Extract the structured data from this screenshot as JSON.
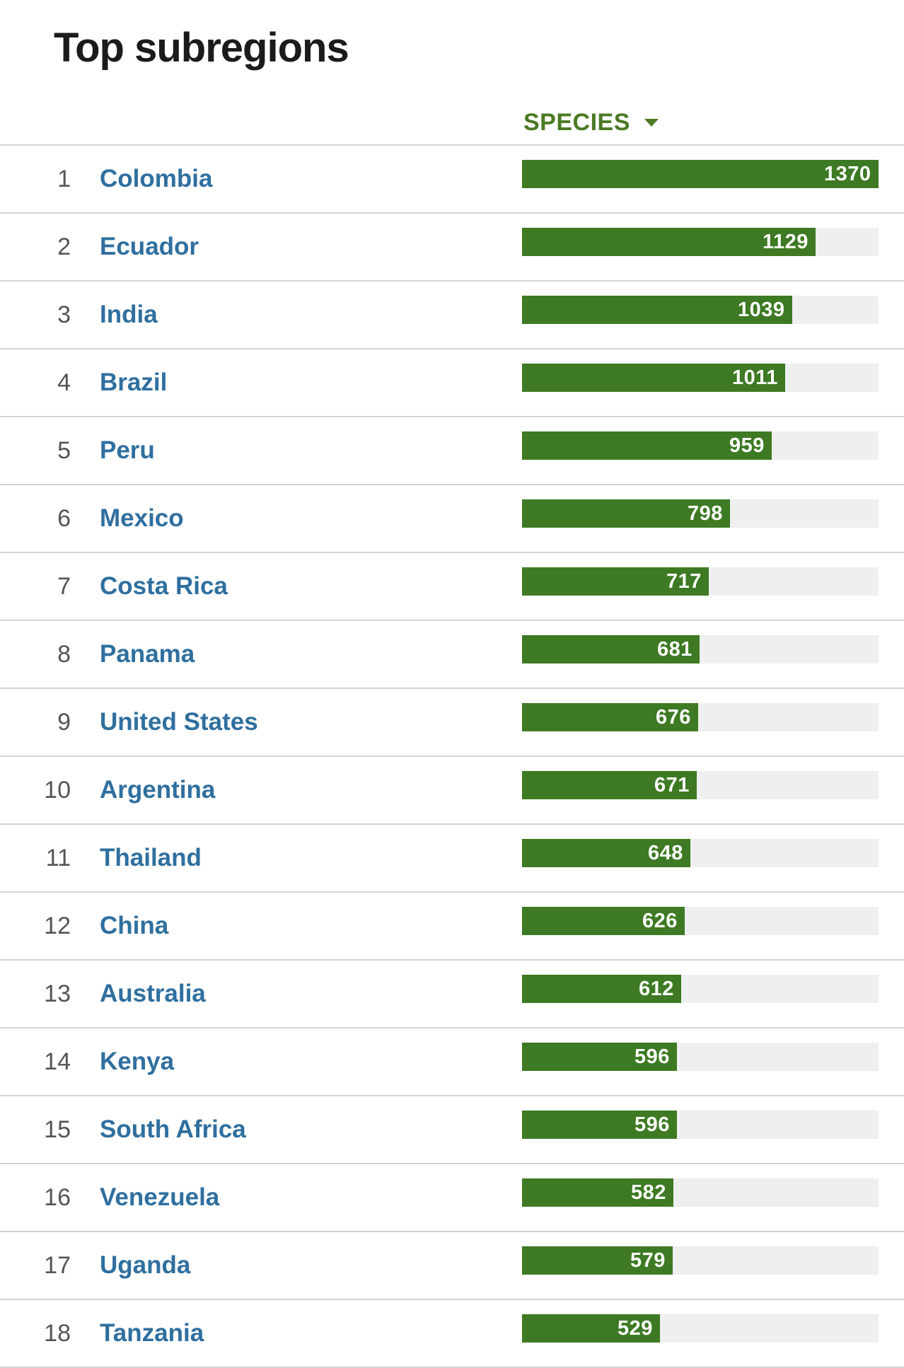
{
  "title": "Top subregions",
  "column_header": {
    "label": "SPECIES",
    "icon": "caret-down-icon"
  },
  "colors": {
    "bar": "#3d7a23",
    "track": "#efefef",
    "link": "#2f6f9f",
    "header": "#4a7a23"
  },
  "chart_data": {
    "type": "bar",
    "orientation": "horizontal",
    "max": 1370,
    "categories": [
      "Colombia",
      "Ecuador",
      "India",
      "Brazil",
      "Peru",
      "Mexico",
      "Costa Rica",
      "Panama",
      "United States",
      "Argentina",
      "Thailand",
      "China",
      "Australia",
      "Kenya",
      "South Africa",
      "Venezuela",
      "Uganda",
      "Tanzania"
    ],
    "values": [
      1370,
      1129,
      1039,
      1011,
      959,
      798,
      717,
      681,
      676,
      671,
      648,
      626,
      612,
      596,
      596,
      582,
      579,
      529
    ]
  },
  "rows": [
    {
      "rank": "1",
      "name": "Colombia",
      "value": "1370"
    },
    {
      "rank": "2",
      "name": "Ecuador",
      "value": "1129"
    },
    {
      "rank": "3",
      "name": "India",
      "value": "1039"
    },
    {
      "rank": "4",
      "name": "Brazil",
      "value": "1011"
    },
    {
      "rank": "5",
      "name": "Peru",
      "value": "959"
    },
    {
      "rank": "6",
      "name": "Mexico",
      "value": "798"
    },
    {
      "rank": "7",
      "name": "Costa Rica",
      "value": "717"
    },
    {
      "rank": "8",
      "name": "Panama",
      "value": "681"
    },
    {
      "rank": "9",
      "name": "United States",
      "value": "676"
    },
    {
      "rank": "10",
      "name": "Argentina",
      "value": "671"
    },
    {
      "rank": "11",
      "name": "Thailand",
      "value": "648"
    },
    {
      "rank": "12",
      "name": "China",
      "value": "626"
    },
    {
      "rank": "13",
      "name": "Australia",
      "value": "612"
    },
    {
      "rank": "14",
      "name": "Kenya",
      "value": "596"
    },
    {
      "rank": "15",
      "name": "South Africa",
      "value": "596"
    },
    {
      "rank": "16",
      "name": "Venezuela",
      "value": "582"
    },
    {
      "rank": "17",
      "name": "Uganda",
      "value": "579"
    },
    {
      "rank": "18",
      "name": "Tanzania",
      "value": "529"
    }
  ]
}
